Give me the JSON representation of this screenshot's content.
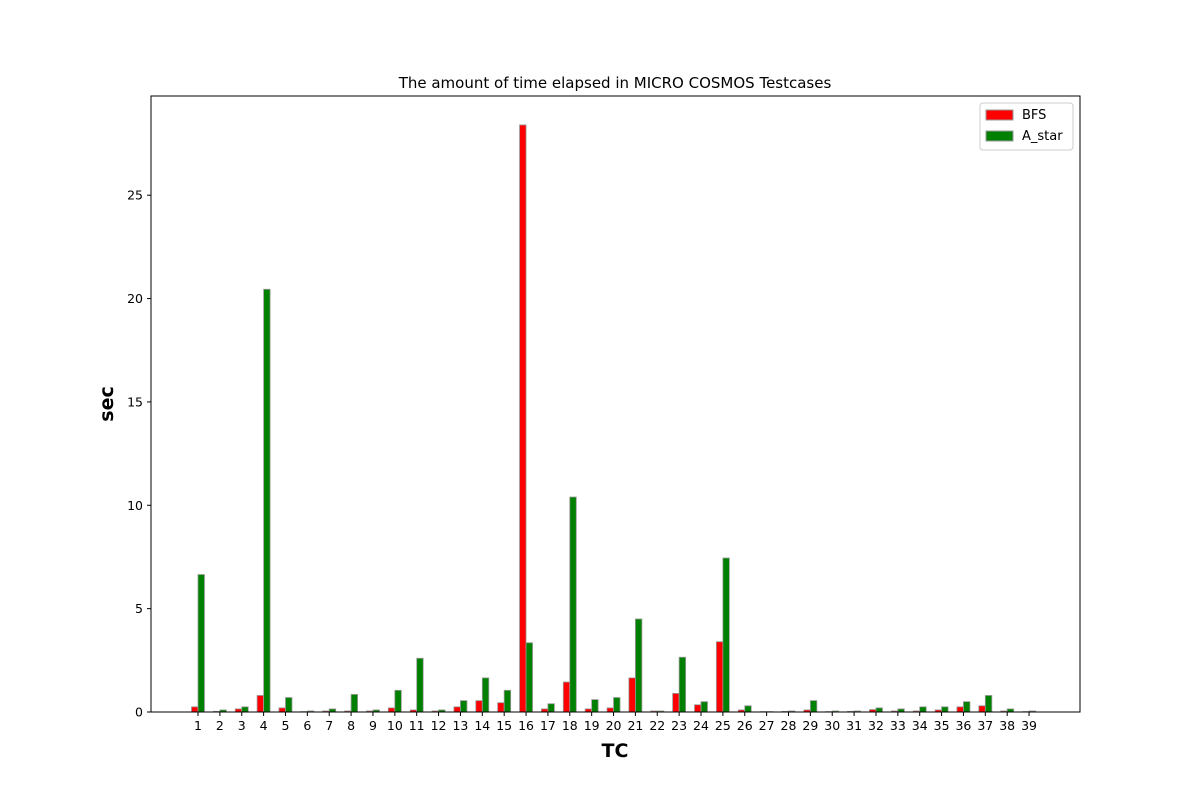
{
  "chart_data": {
    "type": "bar",
    "title": "The amount of time elapsed in MICRO COSMOS Testcases",
    "xlabel": "TC",
    "ylabel": "sec",
    "categories": [
      "1",
      "2",
      "3",
      "4",
      "5",
      "6",
      "7",
      "8",
      "9",
      "10",
      "11",
      "12",
      "13",
      "14",
      "15",
      "16",
      "17",
      "18",
      "19",
      "20",
      "21",
      "22",
      "23",
      "24",
      "25",
      "26",
      "27",
      "28",
      "29",
      "30",
      "31",
      "32",
      "33",
      "34",
      "35",
      "36",
      "37",
      "38",
      "39"
    ],
    "series": [
      {
        "name": "BFS",
        "color": "#ff0000",
        "values": [
          0.25,
          0.03,
          0.15,
          0.8,
          0.2,
          0.02,
          0.05,
          0.05,
          0.05,
          0.2,
          0.1,
          0.05,
          0.25,
          0.55,
          0.45,
          28.4,
          0.15,
          1.45,
          0.15,
          0.2,
          1.65,
          0.05,
          0.9,
          0.35,
          3.4,
          0.1,
          0.02,
          0.03,
          0.1,
          0.02,
          0.03,
          0.12,
          0.05,
          0.05,
          0.1,
          0.25,
          0.3,
          0.05,
          0.02
        ]
      },
      {
        "name": "A_star",
        "color": "#008000",
        "values": [
          6.65,
          0.1,
          0.25,
          20.45,
          0.7,
          0.05,
          0.15,
          0.85,
          0.1,
          1.05,
          2.6,
          0.1,
          0.55,
          1.65,
          1.05,
          3.35,
          0.4,
          10.4,
          0.6,
          0.7,
          4.5,
          0.05,
          2.65,
          0.5,
          7.45,
          0.3,
          0.02,
          0.05,
          0.55,
          0.05,
          0.05,
          0.2,
          0.15,
          0.25,
          0.25,
          0.5,
          0.8,
          0.15,
          0.05
        ]
      }
    ],
    "ylim": [
      0,
      29.8
    ],
    "yticks": [
      0,
      5,
      10,
      15,
      20,
      25
    ],
    "grid": false,
    "legend_position": "top-right",
    "bar_edge_color": "#999999"
  }
}
